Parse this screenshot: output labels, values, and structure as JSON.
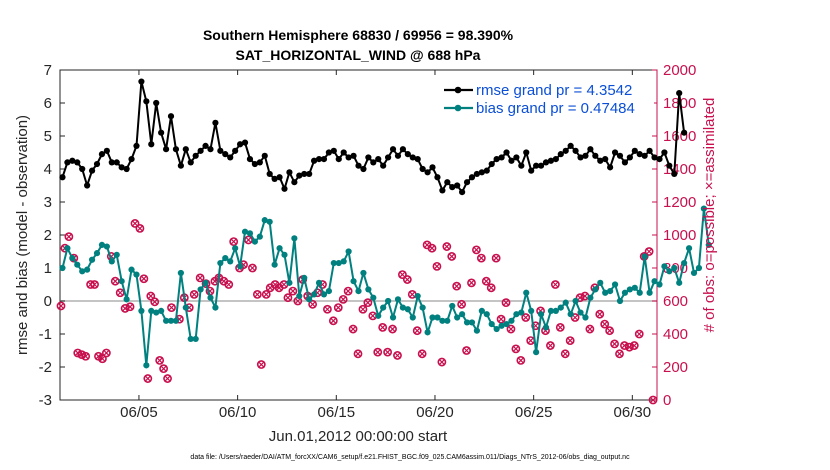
{
  "chart_data": {
    "type": "line",
    "title": [
      "Southern Hemisphere 68830 / 69956 = 98.390%",
      "SAT_HORIZONTAL_WIND @ 688 hPa"
    ],
    "xlabel": "Jun.01,2012 00:00:00 start",
    "ylabel_left": "rmse and bias (model - observation)",
    "ylabel_right": "# of obs: o=possible; ×=assimilated",
    "x_tick_labels": [
      "06/05",
      "06/10",
      "06/15",
      "06/20",
      "06/25",
      "06/30"
    ],
    "x_tick_days": [
      5,
      10,
      15,
      20,
      25,
      30
    ],
    "xlim_days": [
      1,
      31.25
    ],
    "y_left_ticks": [
      "-3",
      "-2",
      "-1",
      "0",
      "1",
      "2",
      "3",
      "4",
      "5",
      "6",
      "7"
    ],
    "ylim_left": [
      -3,
      7
    ],
    "y_right_ticks": [
      "0",
      "200",
      "400",
      "600",
      "800",
      "1000",
      "1200",
      "1400",
      "1600",
      "1800",
      "2000"
    ],
    "ylim_right": [
      0,
      2000
    ],
    "zero_line": 0,
    "colors": {
      "rmse": "#000000",
      "bias": "#00807f",
      "obs": "#c8104f",
      "legend_text": "#0b4fd6",
      "right_axis": "#c8104f"
    },
    "series": [
      {
        "name": "rmse grand pr = 4.3542",
        "axis": "left",
        "x_start_day": 1.125,
        "x_step_days": 0.25,
        "values": [
          3.75,
          4.2,
          4.25,
          4.2,
          4.0,
          3.5,
          3.95,
          4.15,
          4.45,
          4.55,
          4.2,
          4.2,
          4.05,
          4.0,
          4.3,
          4.7,
          6.65,
          6.05,
          4.75,
          6.0,
          5.1,
          4.6,
          5.6,
          4.6,
          4.1,
          4.6,
          4.2,
          4.4,
          4.55,
          4.7,
          4.6,
          5.4,
          4.55,
          4.45,
          4.35,
          4.55,
          4.75,
          4.8,
          4.3,
          4.15,
          4.2,
          4.4,
          3.85,
          3.7,
          3.75,
          3.4,
          3.9,
          3.6,
          3.8,
          3.85,
          3.85,
          4.25,
          4.3,
          4.3,
          4.5,
          4.55,
          4.3,
          4.5,
          4.35,
          4.4,
          4.1,
          4.0,
          4.35,
          4.2,
          4.3,
          4.1,
          4.35,
          4.6,
          4.4,
          4.6,
          4.45,
          4.35,
          4.3,
          4.0,
          3.9,
          4.05,
          3.75,
          3.35,
          3.6,
          3.45,
          3.5,
          3.3,
          3.6,
          3.75,
          3.85,
          3.9,
          3.95,
          4.15,
          4.3,
          4.35,
          4.5,
          4.25,
          4.35,
          4.1,
          4.5,
          3.95,
          4.1,
          4.1,
          4.2,
          4.25,
          4.3,
          4.45,
          4.55,
          4.7,
          4.55,
          4.35,
          4.4,
          4.6,
          4.4,
          4.25,
          4.3,
          4.05,
          4.5,
          4.4,
          4.2,
          4.35,
          4.55,
          4.45,
          4.4,
          4.55,
          4.35,
          4.3,
          4.5,
          4.1,
          3.85,
          6.3,
          5.1
        ]
      },
      {
        "name": "bias grand pr = 0.47484",
        "axis": "left",
        "x_start_day": 1.125,
        "x_step_days": 0.25,
        "values": [
          1.0,
          1.6,
          1.3,
          1.1,
          0.9,
          0.95,
          1.25,
          1.45,
          1.7,
          1.65,
          1.2,
          1.4,
          0.6,
          0.05,
          0.95,
          0.8,
          -0.3,
          -1.95,
          -0.3,
          -0.35,
          -0.3,
          -0.6,
          -0.6,
          -0.6,
          0.85,
          -0.2,
          -1.15,
          -1.15,
          0.35,
          0.55,
          0.1,
          -0.2,
          1.15,
          1.3,
          1.2,
          1.6,
          1.05,
          2.1,
          2.05,
          1.8,
          1.95,
          2.45,
          2.4,
          1.1,
          1.6,
          1.4,
          0.55,
          1.9,
          0.15,
          0.7,
          0.05,
          0.2,
          0.55,
          0.2,
          0.3,
          1.15,
          1.15,
          1.2,
          1.5,
          0.6,
          0.3,
          0.85,
          0.35,
          0.1,
          -0.45,
          -0.2,
          0.0,
          -0.5,
          0.05,
          -0.2,
          -0.25,
          -0.5,
          0.15,
          -0.2,
          -0.95,
          -0.5,
          -0.5,
          -0.6,
          -0.6,
          -0.15,
          -0.5,
          -0.4,
          -0.65,
          -0.65,
          -0.9,
          -0.3,
          -0.4,
          -0.7,
          -0.85,
          -0.75,
          -0.7,
          -0.6,
          -0.4,
          -0.35,
          0.25,
          -0.3,
          -1.55,
          -0.4,
          -0.8,
          -0.3,
          -0.3,
          -0.2,
          -0.05,
          -0.4,
          0.0,
          -0.35,
          -0.5,
          0.1,
          0.35,
          0.55,
          0.25,
          0.3,
          0.5,
          0.0,
          0.25,
          0.35,
          0.4,
          0.25,
          1.35,
          0.25,
          0.6,
          0.5,
          1.05,
          0.9,
          1.0,
          0.55,
          1.15,
          1.6,
          0.85,
          1.0,
          2.8,
          1.7
        ]
      }
    ],
    "obs_possible_points": [
      [
        1.05,
        570
      ],
      [
        1.25,
        920
      ],
      [
        1.45,
        990
      ],
      [
        1.7,
        860
      ],
      [
        1.9,
        285
      ],
      [
        2.1,
        275
      ],
      [
        2.3,
        265
      ],
      [
        2.55,
        700
      ],
      [
        2.75,
        700
      ],
      [
        2.95,
        265
      ],
      [
        3.15,
        250
      ],
      [
        3.35,
        285
      ],
      [
        3.6,
        870
      ],
      [
        3.8,
        720
      ],
      [
        4.05,
        650
      ],
      [
        4.3,
        555
      ],
      [
        4.55,
        565
      ],
      [
        4.8,
        1070
      ],
      [
        5.05,
        1040
      ],
      [
        5.25,
        735
      ],
      [
        5.45,
        130
      ],
      [
        5.6,
        630
      ],
      [
        5.8,
        595
      ],
      [
        6.05,
        240
      ],
      [
        6.25,
        190
      ],
      [
        6.45,
        130
      ],
      [
        6.65,
        560
      ],
      [
        7.05,
        490
      ],
      [
        7.3,
        620
      ],
      [
        7.55,
        560
      ],
      [
        7.8,
        640
      ],
      [
        8.1,
        740
      ],
      [
        8.4,
        705
      ],
      [
        8.6,
        660
      ],
      [
        8.85,
        720
      ],
      [
        9.05,
        740
      ],
      [
        9.3,
        720
      ],
      [
        9.55,
        700
      ],
      [
        9.8,
        960
      ],
      [
        10.1,
        800
      ],
      [
        10.3,
        820
      ],
      [
        10.55,
        970
      ],
      [
        10.75,
        800
      ],
      [
        11.0,
        640
      ],
      [
        11.2,
        215
      ],
      [
        11.45,
        640
      ],
      [
        11.65,
        680
      ],
      [
        11.9,
        700
      ],
      [
        12.1,
        680
      ],
      [
        12.35,
        700
      ],
      [
        12.55,
        620
      ],
      [
        12.8,
        660
      ],
      [
        13.05,
        600
      ],
      [
        13.3,
        730
      ],
      [
        13.55,
        630
      ],
      [
        13.8,
        580
      ],
      [
        14.05,
        650
      ],
      [
        14.3,
        700
      ],
      [
        14.55,
        550
      ],
      [
        14.85,
        480
      ],
      [
        15.1,
        560
      ],
      [
        15.35,
        610
      ],
      [
        15.6,
        660
      ],
      [
        15.85,
        430
      ],
      [
        16.1,
        280
      ],
      [
        16.35,
        550
      ],
      [
        16.6,
        590
      ],
      [
        16.85,
        510
      ],
      [
        17.1,
        290
      ],
      [
        17.35,
        440
      ],
      [
        17.6,
        290
      ],
      [
        17.85,
        430
      ],
      [
        18.1,
        270
      ],
      [
        18.35,
        760
      ],
      [
        18.6,
        730
      ],
      [
        18.85,
        640
      ],
      [
        19.1,
        420
      ],
      [
        19.35,
        280
      ],
      [
        19.6,
        940
      ],
      [
        19.85,
        920
      ],
      [
        20.1,
        810
      ],
      [
        20.35,
        230
      ],
      [
        20.6,
        930
      ],
      [
        20.85,
        870
      ],
      [
        21.1,
        690
      ],
      [
        21.35,
        580
      ],
      [
        21.6,
        300
      ],
      [
        21.85,
        710
      ],
      [
        22.1,
        910
      ],
      [
        22.35,
        860
      ],
      [
        22.6,
        720
      ],
      [
        22.85,
        680
      ],
      [
        23.1,
        860
      ],
      [
        23.35,
        490
      ],
      [
        23.6,
        590
      ],
      [
        23.85,
        430
      ],
      [
        24.1,
        310
      ],
      [
        24.35,
        240
      ],
      [
        24.6,
        500
      ],
      [
        24.85,
        360
      ],
      [
        25.1,
        450
      ],
      [
        25.35,
        540
      ],
      [
        25.6,
        420
      ],
      [
        25.85,
        330
      ],
      [
        26.1,
        700
      ],
      [
        26.35,
        440
      ],
      [
        26.6,
        280
      ],
      [
        26.85,
        360
      ],
      [
        27.1,
        500
      ],
      [
        27.35,
        620
      ],
      [
        27.6,
        630
      ],
      [
        27.85,
        430
      ],
      [
        28.1,
        680
      ],
      [
        28.35,
        520
      ],
      [
        28.6,
        460
      ],
      [
        28.85,
        420
      ],
      [
        29.1,
        340
      ],
      [
        29.35,
        280
      ],
      [
        29.6,
        330
      ],
      [
        29.85,
        320
      ],
      [
        30.1,
        330
      ],
      [
        30.35,
        400
      ],
      [
        30.6,
        870
      ],
      [
        30.85,
        900
      ],
      [
        31.05,
        0
      ]
    ],
    "legend": [
      {
        "label": "rmse grand pr = 4.3542",
        "series": "rmse"
      },
      {
        "label": "bias grand pr = 0.47484",
        "series": "bias"
      }
    ],
    "grid": false
  },
  "footer_text": "data file: /Users/raeder/DAI/ATM_forcXX/CAM6_setup/f.e21.FHIST_BGC.f09_025.CAM6assim.011/Diags_NTrS_2012-06/obs_diag_output.nc"
}
